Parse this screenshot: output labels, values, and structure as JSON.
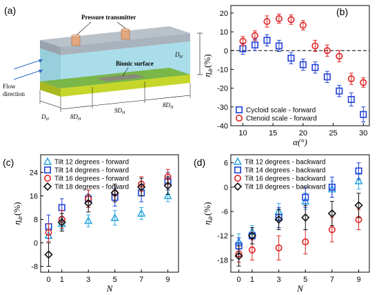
{
  "panel_a": {
    "letter": "(a)",
    "labels": {
      "pressure": "Pressure transmitter",
      "bionic": "Bionic surface",
      "flow1": "Flow",
      "flow2": "direction",
      "dh_right": "D",
      "dh_bottom": "D",
      "d8a": "8D",
      "d9": "9D",
      "d8b": "8D",
      "sub": "H"
    },
    "colors": {
      "top": "#a9b3bd",
      "water": "#a9dde9",
      "green": "#7ab648",
      "yellow": "#c6d62a",
      "bionic": "#8a8a78",
      "cap": "#e2a77e"
    }
  },
  "chart_data": [
    {
      "id": "b",
      "letter": "(b)",
      "type": "scatter",
      "xlabel": "α(°)",
      "ylabel": "η",
      "ylabel_sub": "dr",
      "ylabel_unit": "(%)",
      "xlim": [
        8,
        31
      ],
      "ylim": [
        -40,
        24
      ],
      "xticks": [
        10,
        15,
        20,
        25,
        30
      ],
      "yticks": [
        20,
        10,
        0,
        -10,
        -20,
        -30,
        -40
      ],
      "zero_dashed": true,
      "legend": "lower-left",
      "series": [
        {
          "name": "Cycloid scale - forward",
          "marker": "square",
          "color": "#1f3fd6",
          "x": [
            10,
            12,
            14,
            16,
            18,
            20,
            22,
            24,
            26,
            28,
            30
          ],
          "y": [
            1,
            3,
            5.5,
            2.5,
            -4,
            -7.5,
            -9,
            -14,
            -21.5,
            -26,
            -34
          ],
          "err": [
            3,
            3,
            3,
            3,
            3,
            3,
            3,
            3,
            3,
            3.5,
            4
          ]
        },
        {
          "name": "Ctenoid scale - forward",
          "marker": "circle",
          "color": "#e02020",
          "x": [
            10,
            12,
            14,
            16,
            18,
            20,
            22,
            24,
            26,
            28,
            30
          ],
          "y": [
            5,
            8,
            15.5,
            17,
            16.5,
            13.5,
            2.5,
            0,
            -3,
            -15,
            -17
          ],
          "err": [
            2.5,
            2.5,
            3,
            2.5,
            2.5,
            2.5,
            3,
            3,
            3,
            3,
            2.5
          ]
        }
      ]
    },
    {
      "id": "c",
      "letter": "(c)",
      "type": "scatter",
      "xlabel": "N",
      "ylabel": "η",
      "ylabel_sub": "dr",
      "ylabel_unit": "(%)",
      "xlim": [
        -0.6,
        9.8
      ],
      "ylim": [
        -10,
        30
      ],
      "xticks": [
        0,
        1,
        3,
        5,
        7,
        9
      ],
      "yticks": [
        24,
        16,
        8,
        0,
        -8
      ],
      "zero_dashed": false,
      "legend": "upper-left",
      "series": [
        {
          "name": "Tilt 12 degrees - forward",
          "marker": "triangle",
          "color": "#2ea8df",
          "x": [
            0,
            1,
            3,
            5,
            7,
            9
          ],
          "y": [
            2.5,
            6.5,
            7.5,
            8.5,
            10,
            16
          ],
          "err": [
            2.5,
            2,
            2,
            2.5,
            2,
            2
          ]
        },
        {
          "name": "Tilt 14 degrees - forward",
          "marker": "square",
          "color": "#1f3fd6",
          "x": [
            0,
            1,
            3,
            5,
            7,
            9
          ],
          "y": [
            5.5,
            12,
            15,
            15.5,
            17,
            21
          ],
          "err": [
            4,
            3,
            3,
            3,
            3,
            3
          ]
        },
        {
          "name": "Tilt 16 degrees - forward",
          "marker": "circle",
          "color": "#e02020",
          "x": [
            0,
            1,
            3,
            5,
            7,
            9
          ],
          "y": [
            3.5,
            8,
            15,
            17,
            20,
            22.5
          ],
          "err": [
            3,
            3,
            3,
            3,
            2.5,
            2.5
          ]
        },
        {
          "name": "Tilt 18 degrees - forward",
          "marker": "diamond",
          "color": "#111111",
          "x": [
            0,
            1,
            3,
            5,
            7,
            9
          ],
          "y": [
            -4,
            7,
            13.5,
            17,
            19,
            19.5
          ],
          "err": [
            4,
            3,
            3,
            3,
            3,
            3
          ]
        }
      ]
    },
    {
      "id": "d",
      "letter": "(d)",
      "type": "scatter",
      "xlabel": "N",
      "ylabel": "η",
      "ylabel_sub": "dr",
      "ylabel_unit": "(%)",
      "xlim": [
        -0.6,
        9.8
      ],
      "ylim": [
        -21,
        8
      ],
      "xticks": [
        0,
        1,
        3,
        5,
        7,
        9
      ],
      "yticks": [
        6,
        0,
        -6,
        -12,
        -18
      ],
      "zero_dashed": false,
      "legend": "upper-left",
      "series": [
        {
          "name": "Tilt 12 degrees - backward",
          "marker": "triangle",
          "color": "#2ea8df",
          "x": [
            0,
            1,
            3,
            5,
            7,
            9
          ],
          "y": [
            -13.5,
            -11,
            -6,
            -3.5,
            -0.5,
            1.5
          ],
          "err": [
            2,
            1.5,
            2,
            2,
            2,
            2
          ]
        },
        {
          "name": "Tilt 14 degrees - backward",
          "marker": "square",
          "color": "#1f3fd6",
          "x": [
            0,
            1,
            3,
            5,
            7,
            9
          ],
          "y": [
            -14.5,
            -12,
            -7.5,
            -2.5,
            0,
            4
          ],
          "err": [
            2,
            2,
            2.5,
            2.5,
            2.5,
            2
          ]
        },
        {
          "name": "Tilt 16 degrees - backward",
          "marker": "circle",
          "color": "#e02020",
          "x": [
            0,
            1,
            3,
            5,
            7,
            9
          ],
          "y": [
            -16.5,
            -15.5,
            -15,
            -13.5,
            -10.5,
            -8
          ],
          "err": [
            2,
            2.5,
            3,
            3,
            3,
            2.5
          ]
        },
        {
          "name": "Tilt 18 degrees - backward",
          "marker": "diamond",
          "color": "#111111",
          "x": [
            0,
            1,
            3,
            5,
            7,
            9
          ],
          "y": [
            -17,
            -12,
            -8,
            -7.5,
            -6.5,
            -4.5
          ],
          "err": [
            2.5,
            2,
            2.5,
            3,
            3,
            3
          ]
        }
      ]
    }
  ]
}
